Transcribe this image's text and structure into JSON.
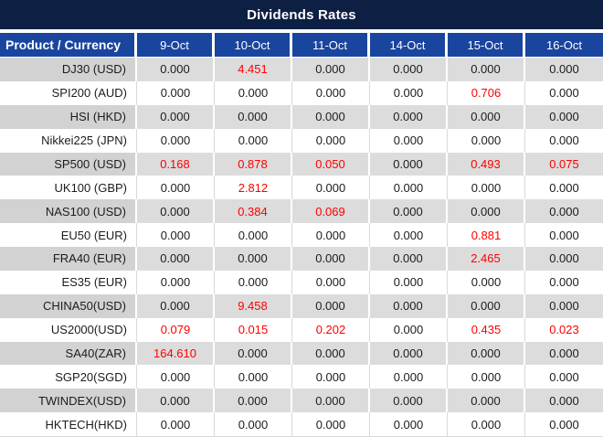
{
  "title": "Dividends Rates",
  "colors": {
    "title_bg": "#0e1f44",
    "header_bg": "#1a459e",
    "row_stripe": "#dcdcdc",
    "product_stripe": "#d2d2d2",
    "divider": "#d9d9d9",
    "highlight_red": "#fe0000",
    "text_dark": "#1c1c1c"
  },
  "table": {
    "columns": [
      "Product / Currency",
      "9-Oct",
      "10-Oct",
      "11-Oct",
      "14-Oct",
      "15-Oct",
      "16-Oct"
    ],
    "rows": [
      {
        "product": "DJ30 (USD)",
        "values": [
          "0.000",
          "4.451",
          "0.000",
          "0.000",
          "0.000",
          "0.000"
        ],
        "red": [
          false,
          true,
          false,
          false,
          false,
          false
        ]
      },
      {
        "product": "SPI200 (AUD)",
        "values": [
          "0.000",
          "0.000",
          "0.000",
          "0.000",
          "0.706",
          "0.000"
        ],
        "red": [
          false,
          false,
          false,
          false,
          true,
          false
        ]
      },
      {
        "product": "HSI (HKD)",
        "values": [
          "0.000",
          "0.000",
          "0.000",
          "0.000",
          "0.000",
          "0.000"
        ],
        "red": [
          false,
          false,
          false,
          false,
          false,
          false
        ]
      },
      {
        "product": "Nikkei225 (JPN)",
        "values": [
          "0.000",
          "0.000",
          "0.000",
          "0.000",
          "0.000",
          "0.000"
        ],
        "red": [
          false,
          false,
          false,
          false,
          false,
          false
        ]
      },
      {
        "product": "SP500 (USD)",
        "values": [
          "0.168",
          "0.878",
          "0.050",
          "0.000",
          "0.493",
          "0.075"
        ],
        "red": [
          true,
          true,
          true,
          false,
          true,
          true
        ]
      },
      {
        "product": "UK100 (GBP)",
        "values": [
          "0.000",
          "2.812",
          "0.000",
          "0.000",
          "0.000",
          "0.000"
        ],
        "red": [
          false,
          true,
          false,
          false,
          false,
          false
        ]
      },
      {
        "product": "NAS100 (USD)",
        "values": [
          "0.000",
          "0.384",
          "0.069",
          "0.000",
          "0.000",
          "0.000"
        ],
        "red": [
          false,
          true,
          true,
          false,
          false,
          false
        ]
      },
      {
        "product": "EU50 (EUR)",
        "values": [
          "0.000",
          "0.000",
          "0.000",
          "0.000",
          "0.881",
          "0.000"
        ],
        "red": [
          false,
          false,
          false,
          false,
          true,
          false
        ]
      },
      {
        "product": "FRA40 (EUR)",
        "values": [
          "0.000",
          "0.000",
          "0.000",
          "0.000",
          "2.465",
          "0.000"
        ],
        "red": [
          false,
          false,
          false,
          false,
          true,
          false
        ]
      },
      {
        "product": "ES35 (EUR)",
        "values": [
          "0.000",
          "0.000",
          "0.000",
          "0.000",
          "0.000",
          "0.000"
        ],
        "red": [
          false,
          false,
          false,
          false,
          false,
          false
        ]
      },
      {
        "product": "CHINA50(USD)",
        "values": [
          "0.000",
          "9.458",
          "0.000",
          "0.000",
          "0.000",
          "0.000"
        ],
        "red": [
          false,
          true,
          false,
          false,
          false,
          false
        ]
      },
      {
        "product": "US2000(USD)",
        "values": [
          "0.079",
          "0.015",
          "0.202",
          "0.000",
          "0.435",
          "0.023"
        ],
        "red": [
          true,
          true,
          true,
          false,
          true,
          true
        ]
      },
      {
        "product": "SA40(ZAR)",
        "values": [
          "164.610",
          "0.000",
          "0.000",
          "0.000",
          "0.000",
          "0.000"
        ],
        "red": [
          true,
          false,
          false,
          false,
          false,
          false
        ]
      },
      {
        "product": "SGP20(SGD)",
        "values": [
          "0.000",
          "0.000",
          "0.000",
          "0.000",
          "0.000",
          "0.000"
        ],
        "red": [
          false,
          false,
          false,
          false,
          false,
          false
        ]
      },
      {
        "product": "TWINDEX(USD)",
        "values": [
          "0.000",
          "0.000",
          "0.000",
          "0.000",
          "0.000",
          "0.000"
        ],
        "red": [
          false,
          false,
          false,
          false,
          false,
          false
        ]
      },
      {
        "product": "HKTECH(HKD)",
        "values": [
          "0.000",
          "0.000",
          "0.000",
          "0.000",
          "0.000",
          "0.000"
        ],
        "red": [
          false,
          false,
          false,
          false,
          false,
          false
        ]
      }
    ]
  }
}
